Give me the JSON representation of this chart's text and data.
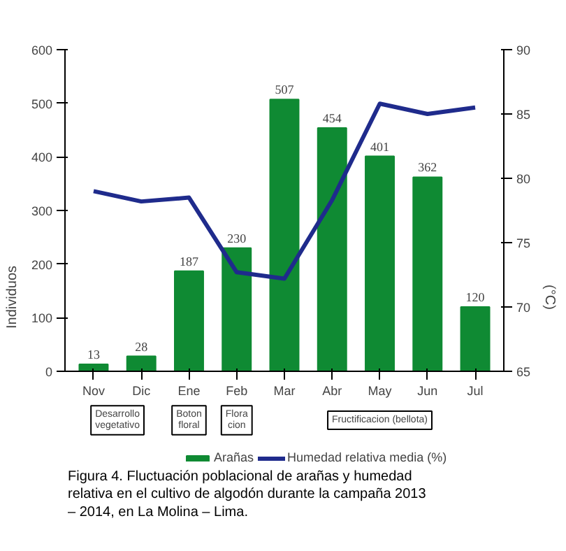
{
  "chart_data": {
    "type": "bar",
    "ylabel": "Individuos",
    "y2label": "(°C)",
    "categories": [
      "Nov",
      "Dic",
      "Ene",
      "Feb",
      "Mar",
      "Abr",
      "May",
      "Jun",
      "Jul"
    ],
    "series": [
      {
        "name": "Arañas",
        "color": "#0f8a33",
        "values": [
          13,
          28,
          187,
          230,
          507,
          454,
          401,
          362,
          120
        ],
        "value_labels": [
          "13",
          "28",
          "187",
          "230",
          "507",
          "454",
          "401",
          "362",
          "120"
        ]
      },
      {
        "name": "Humedad relativa media (%)",
        "type": "line",
        "axis": "y2",
        "color": "#1f2b8c",
        "values": [
          79,
          78.2,
          78.5,
          72.7,
          72.2,
          78.3,
          85.8,
          85,
          85.5
        ]
      }
    ],
    "ylim": [
      0,
      600
    ],
    "yticks": [
      0,
      100,
      200,
      300,
      400,
      500,
      600
    ],
    "y2lim": [
      65,
      90
    ],
    "y2ticks": [
      65,
      70,
      75,
      80,
      85,
      90
    ],
    "legend": "bottom",
    "line_style": "solid",
    "annotations": [
      "Desarrollo vegetativo",
      "Boton floral",
      "Flora cion",
      "Fructificacion (bellota)",
      "Figura 4. Fluctuación poblacional de arañas y humedad relativa en el cultivo de algodón durante la campaña 2013 – 2014, en La Molina – Lima."
    ]
  }
}
